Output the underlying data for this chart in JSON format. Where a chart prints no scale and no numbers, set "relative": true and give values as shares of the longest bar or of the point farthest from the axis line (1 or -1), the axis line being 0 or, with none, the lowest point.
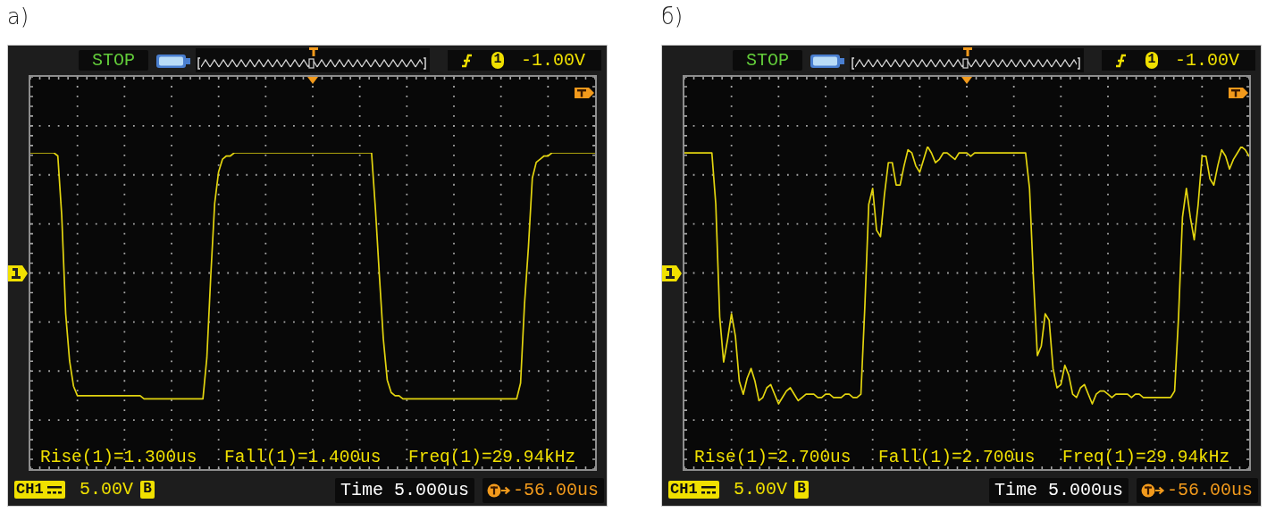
{
  "chart_data": [
    {
      "type": "line",
      "title": "а)",
      "relative": true,
      "grid": true,
      "categories": [
        null,
        null,
        null,
        null,
        null,
        null,
        null,
        null,
        null,
        null,
        null,
        null,
        null,
        null,
        null,
        null,
        null,
        null,
        null,
        null,
        null,
        null,
        null,
        null,
        null,
        null,
        null,
        null,
        null,
        null,
        null,
        null,
        null,
        null,
        null,
        null,
        null,
        null,
        null,
        null,
        null,
        null,
        null,
        null,
        null,
        null,
        null,
        null,
        null,
        null,
        null,
        null,
        null,
        null,
        null,
        null,
        null,
        null,
        null,
        null,
        null,
        null,
        null,
        null,
        null,
        null,
        null,
        null,
        null,
        null,
        null,
        null,
        null,
        null,
        null,
        null,
        null,
        null,
        null,
        null,
        null,
        null,
        null,
        null,
        null,
        null,
        null,
        null,
        null,
        null,
        null,
        null,
        null,
        null,
        null,
        null,
        null,
        null,
        null,
        null,
        null,
        null,
        null,
        null,
        null,
        null,
        null,
        null,
        null,
        null,
        null,
        null,
        null,
        null,
        null,
        null,
        null,
        null,
        null,
        null,
        null,
        null,
        null,
        null,
        null,
        null,
        null,
        null,
        null,
        null,
        null,
        null,
        null,
        null,
        null,
        null,
        null,
        null,
        null,
        null,
        null,
        null,
        null,
        null,
        null
      ],
      "series": [
        {
          "color": "#e2d40f",
          "values": [
            1,
            1,
            1,
            1,
            1,
            1,
            1,
            0.99,
            0.8,
            0.49,
            0.34,
            0.26,
            0.23,
            0.23,
            0.23,
            0.23,
            0.23,
            0.23,
            0.23,
            0.23,
            0.23,
            0.23,
            0.23,
            0.23,
            0.23,
            0.23,
            0.23,
            0.23,
            0.23,
            0.22,
            0.22,
            0.22,
            0.22,
            0.22,
            0.22,
            0.22,
            0.22,
            0.22,
            0.22,
            0.22,
            0.22,
            0.22,
            0.22,
            0.22,
            0.22,
            0.35,
            0.61,
            0.84,
            0.94,
            0.98,
            0.99,
            0.99,
            1,
            1,
            1,
            1,
            1,
            1,
            1,
            1,
            1,
            1,
            1,
            1,
            1,
            1,
            1,
            1,
            1,
            1,
            1,
            1,
            1,
            1,
            1,
            1,
            1,
            1,
            1,
            1,
            1,
            1,
            1,
            1,
            1,
            1,
            1,
            1,
            0.82,
            0.61,
            0.41,
            0.28,
            0.24,
            0.23,
            0.23,
            0.22,
            0.22,
            0.22,
            0.22,
            0.22,
            0.22,
            0.22,
            0.22,
            0.22,
            0.22,
            0.22,
            0.22,
            0.22,
            0.22,
            0.22,
            0.22,
            0.22,
            0.22,
            0.22,
            0.22,
            0.22,
            0.22,
            0.22,
            0.22,
            0.22,
            0.22,
            0.22,
            0.22,
            0.22,
            0.22,
            0.27,
            0.52,
            0.7,
            0.92,
            0.97,
            0.98,
            0.99,
            0.99,
            1,
            1,
            1,
            1,
            1,
            1,
            1,
            1,
            1,
            1,
            1,
            1
          ]
        }
      ],
      "annotations": [
        "STOP",
        "1",
        "-1.00V",
        "Rise(1)=1.300us",
        "Fall(1)=1.400us",
        "Freq(1)=29.94kHz",
        "CH1",
        "5.00V",
        "B",
        "Time 5.000us",
        "-56.00us"
      ]
    },
    {
      "type": "line",
      "title": "б)",
      "relative": true,
      "grid": true,
      "categories": [
        null,
        null,
        null,
        null,
        null,
        null,
        null,
        null,
        null,
        null,
        null,
        null,
        null,
        null,
        null,
        null,
        null,
        null,
        null,
        null,
        null,
        null,
        null,
        null,
        null,
        null,
        null,
        null,
        null,
        null,
        null,
        null,
        null,
        null,
        null,
        null,
        null,
        null,
        null,
        null,
        null,
        null,
        null,
        null,
        null,
        null,
        null,
        null,
        null,
        null,
        null,
        null,
        null,
        null,
        null,
        null,
        null,
        null,
        null,
        null,
        null,
        null,
        null,
        null,
        null,
        null,
        null,
        null,
        null,
        null,
        null,
        null,
        null,
        null,
        null,
        null,
        null,
        null,
        null,
        null,
        null,
        null,
        null,
        null,
        null,
        null,
        null,
        null,
        null,
        null,
        null,
        null,
        null,
        null,
        null,
        null,
        null,
        null,
        null,
        null,
        null,
        null,
        null,
        null,
        null,
        null,
        null,
        null,
        null,
        null,
        null,
        null,
        null,
        null,
        null,
        null,
        null,
        null,
        null,
        null,
        null,
        null,
        null,
        null,
        null,
        null,
        null,
        null,
        null,
        null,
        null,
        null,
        null,
        null,
        null,
        null,
        null,
        null,
        null,
        null,
        null,
        null,
        null,
        null,
        null
      ],
      "series": [
        {
          "color": "#e2d40f",
          "values": [
            0.98,
            0.98,
            0.98,
            0.98,
            0.98,
            0.98,
            0.98,
            0.98,
            0.82,
            0.47,
            0.33,
            0.4,
            0.48,
            0.41,
            0.27,
            0.23,
            0.28,
            0.31,
            0.27,
            0.21,
            0.22,
            0.25,
            0.26,
            0.23,
            0.2,
            0.22,
            0.24,
            0.25,
            0.23,
            0.21,
            0.22,
            0.23,
            0.23,
            0.23,
            0.22,
            0.22,
            0.23,
            0.23,
            0.22,
            0.22,
            0.22,
            0.23,
            0.23,
            0.22,
            0.22,
            0.23,
            0.5,
            0.82,
            0.87,
            0.74,
            0.72,
            0.85,
            0.95,
            0.95,
            0.88,
            0.88,
            0.94,
            0.99,
            0.98,
            0.94,
            0.92,
            0.96,
            1,
            0.98,
            0.95,
            0.96,
            0.98,
            0.98,
            0.97,
            0.96,
            0.98,
            0.98,
            0.98,
            0.97,
            0.98,
            0.98,
            0.98,
            0.98,
            0.98,
            0.98,
            0.98,
            0.98,
            0.98,
            0.98,
            0.98,
            0.98,
            0.98,
            0.98,
            0.87,
            0.59,
            0.35,
            0.38,
            0.48,
            0.46,
            0.31,
            0.25,
            0.26,
            0.32,
            0.29,
            0.23,
            0.22,
            0.25,
            0.26,
            0.23,
            0.2,
            0.23,
            0.24,
            0.24,
            0.23,
            0.22,
            0.23,
            0.23,
            0.23,
            0.23,
            0.22,
            0.23,
            0.23,
            0.22,
            0.22,
            0.22,
            0.22,
            0.22,
            0.22,
            0.22,
            0.22,
            0.24,
            0.47,
            0.78,
            0.87,
            0.78,
            0.71,
            0.82,
            0.97,
            0.97,
            0.9,
            0.88,
            0.94,
            0.99,
            0.97,
            0.93,
            0.96,
            0.98,
            1,
            0.99,
            0.97
          ]
        }
      ],
      "annotations": [
        "STOP",
        "1",
        "-1.00V",
        "Rise(1)=2.700us",
        "Fall(1)=2.700us",
        "Freq(1)=29.94kHz",
        "CH1",
        "5.00V",
        "B",
        "Time 5.000us",
        "-56.00us"
      ]
    }
  ]
}
